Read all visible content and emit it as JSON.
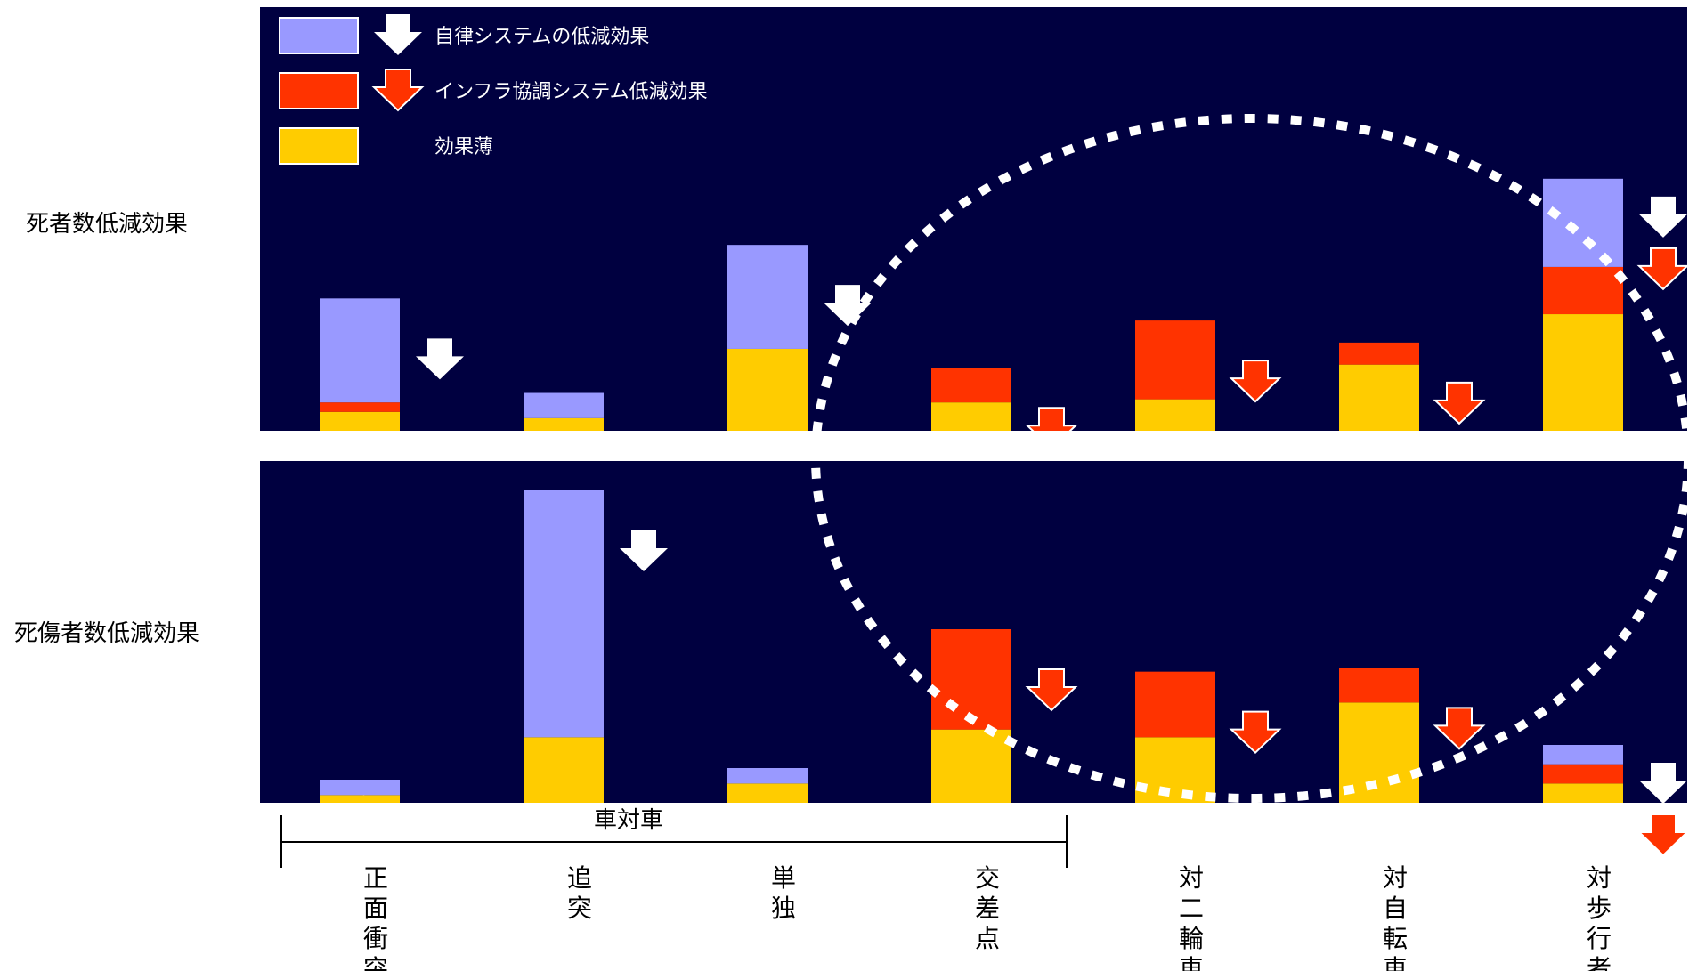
{
  "colors": {
    "panel_bg": "#000040",
    "autonomous": "#9999ff",
    "infra": "#ff3300",
    "little_effect": "#ffcc00",
    "arrow_white": "#ffffff",
    "arrow_red": "#ff3300",
    "circle": "#ffffff"
  },
  "legend": [
    {
      "label": "自律システムの低減効果",
      "color": "#9999ff",
      "arrow": "white"
    },
    {
      "label": "インフラ協調システム低減効果",
      "color": "#ff3300",
      "arrow": "red"
    },
    {
      "label": "効果薄",
      "color": "#ffcc00",
      "arrow": "none"
    }
  ],
  "chart_data": [
    {
      "type": "bar",
      "stacked": true,
      "title": "死者数低減効果",
      "categories": [
        "正面衝突",
        "追突",
        "単独",
        "交差点",
        "対二輪車",
        "対自転車",
        "対歩行者"
      ],
      "series": [
        {
          "name": "効果薄",
          "values": [
            6,
            4,
            26,
            9,
            10,
            21,
            37
          ],
          "color": "#ffcc00"
        },
        {
          "name": "インフラ協調システム低減効果",
          "values": [
            3,
            0,
            0,
            11,
            25,
            7,
            15
          ],
          "color": "#ff3300"
        },
        {
          "name": "自律システムの低減効果",
          "values": [
            33,
            8,
            33,
            0,
            0,
            0,
            28
          ],
          "color": "#9999ff"
        }
      ],
      "arrows": [
        [
          "white"
        ],
        [
          "white"
        ],
        [
          "white"
        ],
        [
          "red"
        ],
        [
          "red"
        ],
        [
          "red"
        ],
        [
          "white",
          "red"
        ]
      ],
      "ylim": [
        0,
        113
      ]
    },
    {
      "type": "bar",
      "stacked": true,
      "title": "死傷者数低減効果",
      "categories": [
        "正面衝突",
        "追突",
        "単独",
        "交差点",
        "対二輪車",
        "対自転車",
        "対歩行者"
      ],
      "series": [
        {
          "name": "効果薄",
          "values": [
            2,
            17,
            5,
            19,
            17,
            26,
            5
          ],
          "color": "#ffcc00"
        },
        {
          "name": "インフラ協調システム低減効果",
          "values": [
            0,
            0,
            0,
            26,
            17,
            9,
            5
          ],
          "color": "#ff3300"
        },
        {
          "name": "自律システムの低減効果",
          "values": [
            4,
            64,
            4,
            0,
            0,
            0,
            5
          ],
          "color": "#9999ff"
        }
      ],
      "arrows": [
        [
          "white"
        ],
        [
          "white"
        ],
        [
          "white"
        ],
        [
          "red"
        ],
        [
          "red"
        ],
        [
          "red"
        ],
        [
          "white",
          "red"
        ]
      ],
      "ylim": [
        0,
        90
      ]
    }
  ],
  "group": {
    "label": "車対車",
    "span": 4
  }
}
